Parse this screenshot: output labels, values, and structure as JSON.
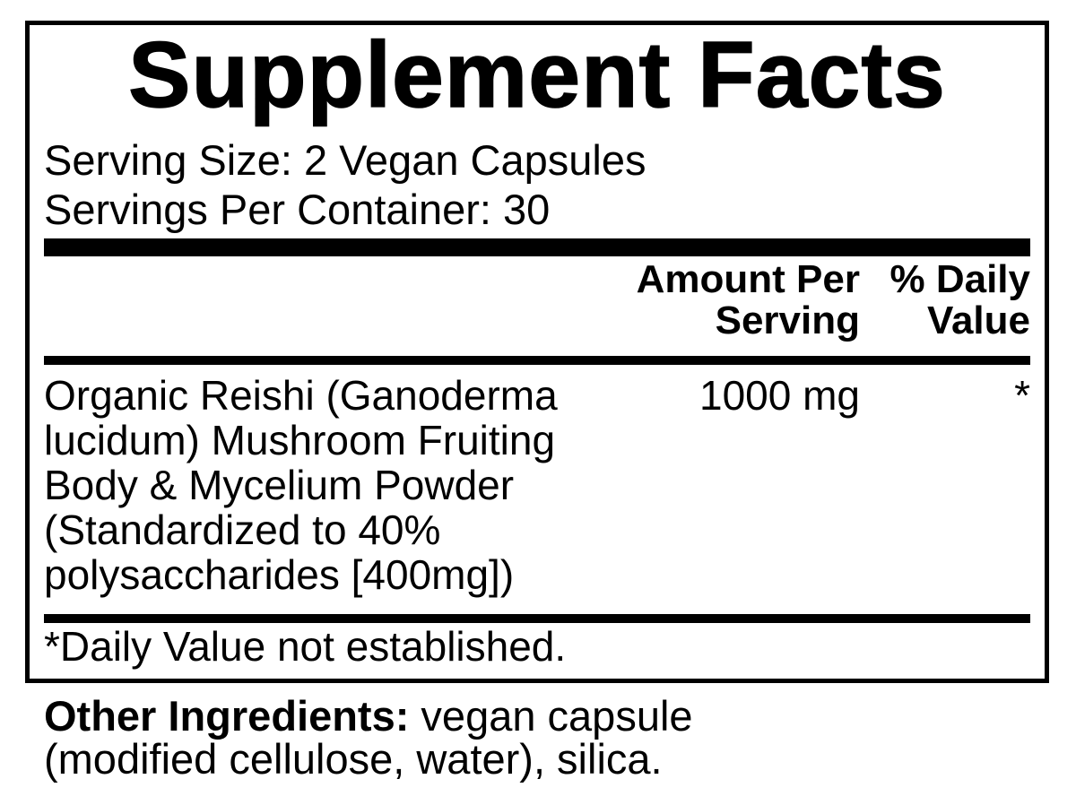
{
  "label": {
    "title": "Supplement Facts",
    "serving_size": "Serving Size: 2 Vegan Capsules",
    "servings_per_container": "Servings Per Container: 30",
    "columns": {
      "amount_header": "Amount Per Serving",
      "daily_value_header": "% Daily Value"
    },
    "rows": [
      {
        "name": "Organic Reishi (Ganoderma lucidum) Mushroom Fruiting Body & Mycelium Powder (Standardized to 40% polysaccharides [400mg])",
        "amount": "1000 mg",
        "daily_value": "*"
      }
    ],
    "footnote": "*Daily Value not established.",
    "other_ingredients_label": "Other Ingredients:",
    "other_ingredients_text": " vegan capsule (modified cellulose, water), silica."
  },
  "colors": {
    "text": "#000000",
    "background": "#ffffff",
    "rule": "#000000"
  }
}
